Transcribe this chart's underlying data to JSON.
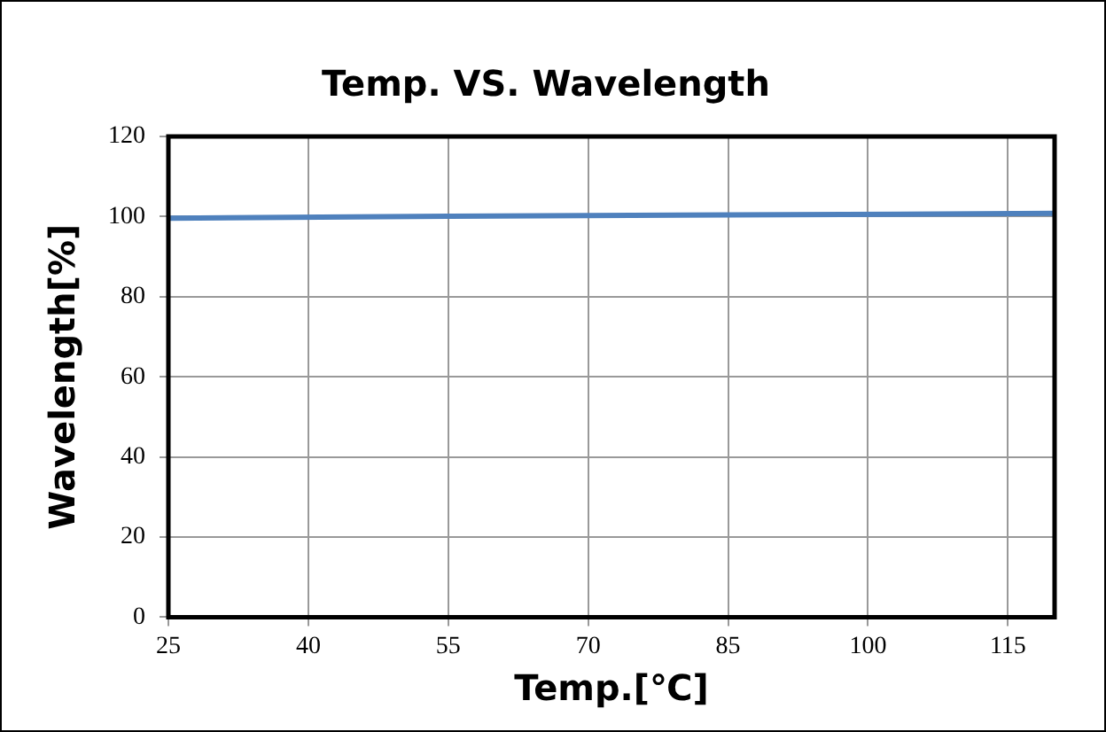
{
  "chart_data": {
    "type": "line",
    "title": "Temp. VS. Wavelength",
    "xlabel": "Temp.[℃]",
    "ylabel": "Wavelength[%]",
    "x": [
      25,
      55,
      85,
      120
    ],
    "series": [
      {
        "color": "#4f81bd",
        "values": [
          99.6,
          100.1,
          100.4,
          100.8
        ]
      }
    ],
    "xlim": [
      25,
      120
    ],
    "xticks": [
      25,
      40,
      55,
      70,
      85,
      100,
      115
    ],
    "ylim": [
      0,
      120
    ],
    "yticks": [
      0,
      20,
      40,
      60,
      80,
      100,
      120
    ],
    "grid": true,
    "legend": false,
    "marker": "none",
    "line_style": "solid"
  }
}
